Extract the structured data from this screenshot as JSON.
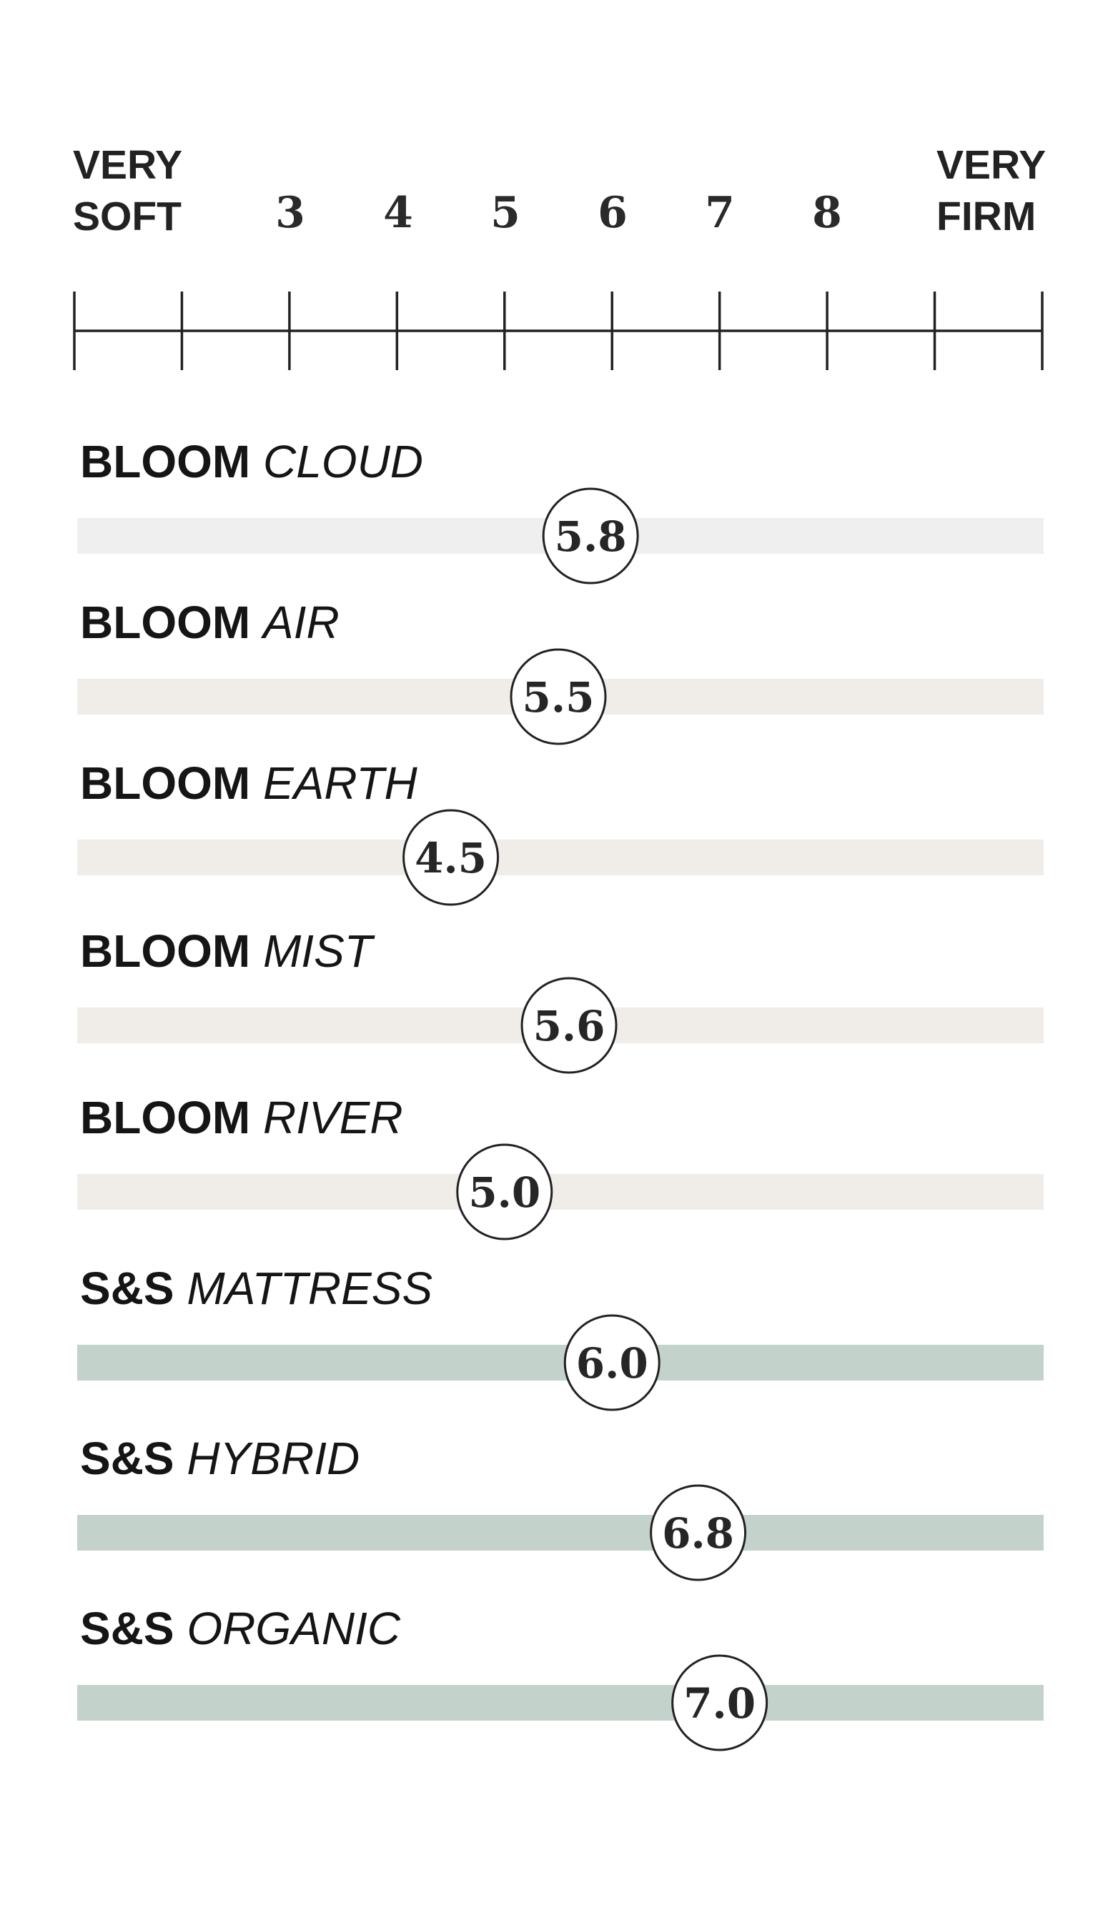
{
  "scale": {
    "left_label": [
      "VERY",
      "SOFT"
    ],
    "right_label": [
      "VERY",
      "FIRM"
    ],
    "tick_labels": [
      "3",
      "4",
      "5",
      "6",
      "7",
      "8"
    ]
  },
  "colors": {
    "bloom_cloud_bar": "#efefef",
    "bloom_bar": "#f0ece8",
    "ss_bar": "#c4d2cc",
    "ink": "#222222"
  },
  "chart_data": {
    "type": "bar",
    "xlim": [
      1,
      10
    ],
    "categories": [
      "BLOOM CLOUD",
      "BLOOM AIR",
      "BLOOM EARTH",
      "BLOOM MIST",
      "BLOOM RIVER",
      "S&S MATTRESS",
      "S&S HYBRID",
      "S&S ORGANIC"
    ],
    "values": [
      5.8,
      5.5,
      4.5,
      5.6,
      5.0,
      6.0,
      6.8,
      7.0
    ],
    "value_labels": [
      "5.8",
      "5.5",
      "4.5",
      "5.6",
      "5.0",
      "6.0",
      "6.8",
      "7.0"
    ],
    "brands": [
      "BLOOM",
      "BLOOM",
      "BLOOM",
      "BLOOM",
      "BLOOM",
      "S&S",
      "S&S",
      "S&S"
    ],
    "models": [
      "CLOUD",
      "AIR",
      "EARTH",
      "MIST",
      "RIVER",
      "MATTRESS",
      "HYBRID",
      "ORGANIC"
    ],
    "bar_colors": [
      "#efefef",
      "#f0ece8",
      "#f0ece8",
      "#f0ece8",
      "#f0ece8",
      "#c4d2cc",
      "#c4d2cc",
      "#c4d2cc"
    ]
  }
}
